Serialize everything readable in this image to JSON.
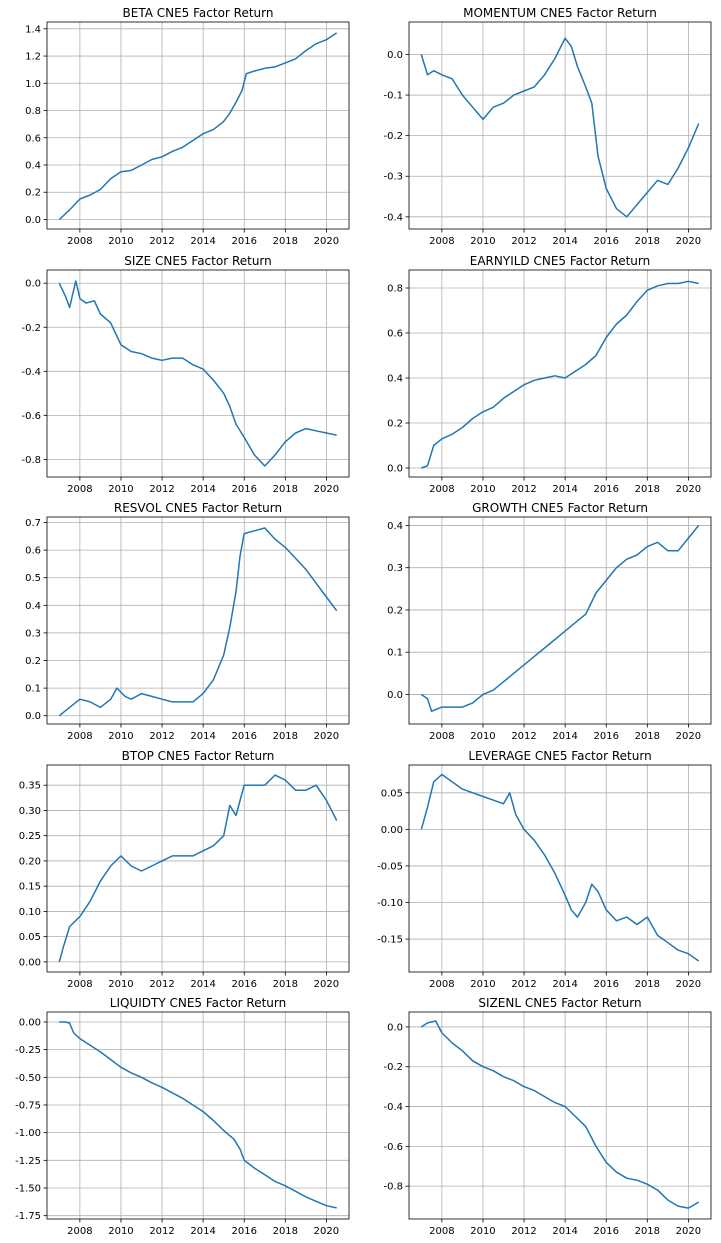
{
  "figure": {
    "background": "#ffffff"
  },
  "style": {
    "line_color": "#1f77b4",
    "grid_color": "#b0b0b0",
    "axis_color": "#000000"
  },
  "chart_data": [
    {
      "type": "line",
      "title": "BETA  CNE5 Factor Return",
      "grid": true,
      "xlim": [
        2006.4,
        2021.1
      ],
      "ylim": [
        -0.07,
        1.45
      ],
      "xticks": [
        2008,
        2010,
        2012,
        2014,
        2016,
        2018,
        2020
      ],
      "yticks": [
        0.0,
        0.2,
        0.4,
        0.6,
        0.8,
        1.0,
        1.2,
        1.4
      ],
      "ytick_decimals": 1,
      "x": [
        2007.0,
        2007.5,
        2008.0,
        2008.5,
        2009.0,
        2009.5,
        2010.0,
        2010.5,
        2011.0,
        2011.5,
        2012.0,
        2012.5,
        2013.0,
        2013.5,
        2014.0,
        2014.5,
        2015.0,
        2015.3,
        2015.6,
        2015.9,
        2016.1,
        2016.5,
        2017.0,
        2017.5,
        2018.0,
        2018.5,
        2019.0,
        2019.5,
        2020.0,
        2020.5
      ],
      "y": [
        0.0,
        0.07,
        0.15,
        0.18,
        0.22,
        0.3,
        0.35,
        0.36,
        0.4,
        0.44,
        0.46,
        0.5,
        0.53,
        0.58,
        0.63,
        0.66,
        0.72,
        0.78,
        0.86,
        0.95,
        1.07,
        1.09,
        1.11,
        1.12,
        1.15,
        1.18,
        1.24,
        1.29,
        1.32,
        1.37
      ]
    },
    {
      "type": "line",
      "title": "MOMENTUM  CNE5 Factor Return",
      "grid": true,
      "xlim": [
        2006.4,
        2021.1
      ],
      "ylim": [
        -0.43,
        0.08
      ],
      "xticks": [
        2008,
        2010,
        2012,
        2014,
        2016,
        2018,
        2020
      ],
      "yticks": [
        0.0,
        -0.1,
        -0.2,
        -0.3,
        -0.4
      ],
      "ytick_decimals": 1,
      "x": [
        2007.0,
        2007.3,
        2007.6,
        2008.0,
        2008.5,
        2009.0,
        2009.5,
        2010.0,
        2010.5,
        2011.0,
        2011.5,
        2012.0,
        2012.5,
        2013.0,
        2013.5,
        2014.0,
        2014.3,
        2014.6,
        2015.0,
        2015.3,
        2015.6,
        2016.0,
        2016.5,
        2017.0,
        2017.5,
        2018.0,
        2018.5,
        2019.0,
        2019.5,
        2020.0,
        2020.5
      ],
      "y": [
        0.0,
        -0.05,
        -0.04,
        -0.05,
        -0.06,
        -0.1,
        -0.13,
        -0.16,
        -0.13,
        -0.12,
        -0.1,
        -0.09,
        -0.08,
        -0.05,
        -0.01,
        0.04,
        0.02,
        -0.03,
        -0.08,
        -0.12,
        -0.25,
        -0.33,
        -0.38,
        -0.4,
        -0.37,
        -0.34,
        -0.31,
        -0.32,
        -0.28,
        -0.23,
        -0.17
      ]
    },
    {
      "type": "line",
      "title": "SIZE  CNE5 Factor Return",
      "grid": true,
      "xlim": [
        2006.4,
        2021.1
      ],
      "ylim": [
        -0.88,
        0.06
      ],
      "xticks": [
        2008,
        2010,
        2012,
        2014,
        2016,
        2018,
        2020
      ],
      "yticks": [
        0.0,
        -0.2,
        -0.4,
        -0.6,
        -0.8
      ],
      "ytick_decimals": 1,
      "x": [
        2007.0,
        2007.3,
        2007.5,
        2007.8,
        2008.0,
        2008.3,
        2008.7,
        2009.0,
        2009.5,
        2010.0,
        2010.5,
        2011.0,
        2011.5,
        2012.0,
        2012.5,
        2013.0,
        2013.5,
        2014.0,
        2014.5,
        2015.0,
        2015.3,
        2015.6,
        2016.0,
        2016.5,
        2017.0,
        2017.5,
        2018.0,
        2018.5,
        2019.0,
        2019.5,
        2020.0,
        2020.5
      ],
      "y": [
        0.0,
        -0.06,
        -0.11,
        0.01,
        -0.07,
        -0.09,
        -0.08,
        -0.14,
        -0.18,
        -0.28,
        -0.31,
        -0.32,
        -0.34,
        -0.35,
        -0.34,
        -0.34,
        -0.37,
        -0.39,
        -0.44,
        -0.5,
        -0.56,
        -0.64,
        -0.7,
        -0.78,
        -0.83,
        -0.78,
        -0.72,
        -0.68,
        -0.66,
        -0.67,
        -0.68,
        -0.69
      ]
    },
    {
      "type": "line",
      "title": "EARNYILD  CNE5 Factor Return",
      "grid": true,
      "xlim": [
        2006.4,
        2021.1
      ],
      "ylim": [
        -0.04,
        0.88
      ],
      "xticks": [
        2008,
        2010,
        2012,
        2014,
        2016,
        2018,
        2020
      ],
      "yticks": [
        0.0,
        0.2,
        0.4,
        0.6,
        0.8
      ],
      "ytick_decimals": 1,
      "x": [
        2007.0,
        2007.3,
        2007.6,
        2008.0,
        2008.5,
        2009.0,
        2009.5,
        2010.0,
        2010.5,
        2011.0,
        2011.5,
        2012.0,
        2012.5,
        2013.0,
        2013.5,
        2014.0,
        2014.5,
        2015.0,
        2015.5,
        2016.0,
        2016.5,
        2017.0,
        2017.5,
        2018.0,
        2018.5,
        2019.0,
        2019.5,
        2020.0,
        2020.5
      ],
      "y": [
        0.0,
        0.01,
        0.1,
        0.13,
        0.15,
        0.18,
        0.22,
        0.25,
        0.27,
        0.31,
        0.34,
        0.37,
        0.39,
        0.4,
        0.41,
        0.4,
        0.43,
        0.46,
        0.5,
        0.58,
        0.64,
        0.68,
        0.74,
        0.79,
        0.81,
        0.82,
        0.82,
        0.83,
        0.82
      ]
    },
    {
      "type": "line",
      "title": "RESVOL  CNE5 Factor Return",
      "grid": true,
      "xlim": [
        2006.4,
        2021.1
      ],
      "ylim": [
        -0.03,
        0.72
      ],
      "xticks": [
        2008,
        2010,
        2012,
        2014,
        2016,
        2018,
        2020
      ],
      "yticks": [
        0.0,
        0.1,
        0.2,
        0.3,
        0.4,
        0.5,
        0.6,
        0.7
      ],
      "ytick_decimals": 1,
      "x": [
        2007.0,
        2007.5,
        2008.0,
        2008.5,
        2009.0,
        2009.5,
        2009.8,
        2010.2,
        2010.5,
        2011.0,
        2011.5,
        2012.0,
        2012.5,
        2013.0,
        2013.5,
        2014.0,
        2014.5,
        2015.0,
        2015.3,
        2015.6,
        2015.8,
        2016.0,
        2016.5,
        2017.0,
        2017.5,
        2018.0,
        2018.5,
        2019.0,
        2019.5,
        2020.0,
        2020.5
      ],
      "y": [
        0.0,
        0.03,
        0.06,
        0.05,
        0.03,
        0.06,
        0.1,
        0.07,
        0.06,
        0.08,
        0.07,
        0.06,
        0.05,
        0.05,
        0.05,
        0.08,
        0.13,
        0.22,
        0.32,
        0.45,
        0.58,
        0.66,
        0.67,
        0.68,
        0.64,
        0.61,
        0.57,
        0.53,
        0.48,
        0.43,
        0.38
      ]
    },
    {
      "type": "line",
      "title": "GROWTH  CNE5 Factor Return",
      "grid": true,
      "xlim": [
        2006.4,
        2021.1
      ],
      "ylim": [
        -0.07,
        0.42
      ],
      "xticks": [
        2008,
        2010,
        2012,
        2014,
        2016,
        2018,
        2020
      ],
      "yticks": [
        0.0,
        0.1,
        0.2,
        0.3,
        0.4
      ],
      "ytick_decimals": 1,
      "x": [
        2007.0,
        2007.3,
        2007.5,
        2008.0,
        2008.5,
        2009.0,
        2009.5,
        2010.0,
        2010.5,
        2011.0,
        2011.5,
        2012.0,
        2012.5,
        2013.0,
        2013.5,
        2014.0,
        2014.5,
        2015.0,
        2015.5,
        2016.0,
        2016.5,
        2017.0,
        2017.5,
        2018.0,
        2018.5,
        2019.0,
        2019.5,
        2020.0,
        2020.5
      ],
      "y": [
        0.0,
        -0.01,
        -0.04,
        -0.03,
        -0.03,
        -0.03,
        -0.02,
        0.0,
        0.01,
        0.03,
        0.05,
        0.07,
        0.09,
        0.11,
        0.13,
        0.15,
        0.17,
        0.19,
        0.24,
        0.27,
        0.3,
        0.32,
        0.33,
        0.35,
        0.36,
        0.34,
        0.34,
        0.37,
        0.4
      ]
    },
    {
      "type": "line",
      "title": "BTOP  CNE5 Factor Return",
      "grid": true,
      "xlim": [
        2006.4,
        2021.1
      ],
      "ylim": [
        -0.02,
        0.39
      ],
      "xticks": [
        2008,
        2010,
        2012,
        2014,
        2016,
        2018,
        2020
      ],
      "yticks": [
        0.0,
        0.05,
        0.1,
        0.15,
        0.2,
        0.25,
        0.3,
        0.35
      ],
      "ytick_decimals": 2,
      "x": [
        2007.0,
        2007.2,
        2007.5,
        2008.0,
        2008.5,
        2009.0,
        2009.5,
        2010.0,
        2010.5,
        2011.0,
        2011.5,
        2012.0,
        2012.5,
        2013.0,
        2013.5,
        2014.0,
        2014.5,
        2015.0,
        2015.3,
        2015.6,
        2016.0,
        2016.5,
        2017.0,
        2017.5,
        2018.0,
        2018.5,
        2019.0,
        2019.5,
        2020.0,
        2020.5
      ],
      "y": [
        0.0,
        0.03,
        0.07,
        0.09,
        0.12,
        0.16,
        0.19,
        0.21,
        0.19,
        0.18,
        0.19,
        0.2,
        0.21,
        0.21,
        0.21,
        0.22,
        0.23,
        0.25,
        0.31,
        0.29,
        0.35,
        0.35,
        0.35,
        0.37,
        0.36,
        0.34,
        0.34,
        0.35,
        0.32,
        0.28
      ]
    },
    {
      "type": "line",
      "title": "LEVERAGE  CNE5 Factor Return",
      "grid": true,
      "xlim": [
        2006.4,
        2021.1
      ],
      "ylim": [
        -0.195,
        0.088
      ],
      "xticks": [
        2008,
        2010,
        2012,
        2014,
        2016,
        2018,
        2020
      ],
      "yticks": [
        0.05,
        0.0,
        -0.05,
        -0.1,
        -0.15
      ],
      "ytick_decimals": 2,
      "x": [
        2007.0,
        2007.3,
        2007.6,
        2008.0,
        2008.5,
        2009.0,
        2009.5,
        2010.0,
        2010.5,
        2011.0,
        2011.3,
        2011.6,
        2012.0,
        2012.5,
        2013.0,
        2013.5,
        2014.0,
        2014.3,
        2014.6,
        2015.0,
        2015.3,
        2015.6,
        2016.0,
        2016.5,
        2017.0,
        2017.5,
        2018.0,
        2018.5,
        2019.0,
        2019.5,
        2020.0,
        2020.5
      ],
      "y": [
        0.0,
        0.03,
        0.065,
        0.075,
        0.065,
        0.055,
        0.05,
        0.045,
        0.04,
        0.035,
        0.05,
        0.02,
        0.0,
        -0.015,
        -0.035,
        -0.06,
        -0.09,
        -0.11,
        -0.12,
        -0.1,
        -0.075,
        -0.085,
        -0.11,
        -0.125,
        -0.12,
        -0.13,
        -0.12,
        -0.145,
        -0.155,
        -0.165,
        -0.17,
        -0.18
      ]
    },
    {
      "type": "line",
      "title": "LIQUIDTY  CNE5 Factor Return",
      "grid": true,
      "xlim": [
        2006.4,
        2021.1
      ],
      "ylim": [
        -1.78,
        0.09
      ],
      "xticks": [
        2008,
        2010,
        2012,
        2014,
        2016,
        2018,
        2020
      ],
      "yticks": [
        0.0,
        -0.25,
        -0.5,
        -0.75,
        -1.0,
        -1.25,
        -1.5,
        -1.75
      ],
      "ytick_decimals": 2,
      "x": [
        2007.0,
        2007.3,
        2007.5,
        2007.7,
        2008.0,
        2008.5,
        2009.0,
        2009.5,
        2010.0,
        2010.5,
        2011.0,
        2011.5,
        2012.0,
        2012.5,
        2013.0,
        2013.5,
        2014.0,
        2014.5,
        2015.0,
        2015.5,
        2015.8,
        2016.0,
        2016.5,
        2017.0,
        2017.5,
        2018.0,
        2018.5,
        2019.0,
        2019.5,
        2020.0,
        2020.5
      ],
      "y": [
        0.0,
        0.0,
        -0.01,
        -0.1,
        -0.15,
        -0.21,
        -0.27,
        -0.34,
        -0.41,
        -0.46,
        -0.5,
        -0.55,
        -0.59,
        -0.64,
        -0.69,
        -0.75,
        -0.81,
        -0.89,
        -0.98,
        -1.06,
        -1.15,
        -1.25,
        -1.32,
        -1.38,
        -1.44,
        -1.48,
        -1.53,
        -1.58,
        -1.62,
        -1.66,
        -1.68
      ]
    },
    {
      "type": "line",
      "title": "SIZENL  CNE5 Factor Return",
      "grid": true,
      "xlim": [
        2006.4,
        2021.1
      ],
      "ylim": [
        -0.965,
        0.075
      ],
      "xticks": [
        2008,
        2010,
        2012,
        2014,
        2016,
        2018,
        2020
      ],
      "yticks": [
        0.0,
        -0.2,
        -0.4,
        -0.6,
        -0.8
      ],
      "ytick_decimals": 1,
      "x": [
        2007.0,
        2007.3,
        2007.7,
        2008.0,
        2008.5,
        2009.0,
        2009.5,
        2010.0,
        2010.5,
        2011.0,
        2011.5,
        2012.0,
        2012.5,
        2013.0,
        2013.5,
        2014.0,
        2014.5,
        2015.0,
        2015.5,
        2016.0,
        2016.5,
        2017.0,
        2017.5,
        2018.0,
        2018.5,
        2019.0,
        2019.5,
        2020.0,
        2020.5
      ],
      "y": [
        0.0,
        0.02,
        0.03,
        -0.03,
        -0.08,
        -0.12,
        -0.17,
        -0.2,
        -0.22,
        -0.25,
        -0.27,
        -0.3,
        -0.32,
        -0.35,
        -0.38,
        -0.4,
        -0.45,
        -0.5,
        -0.6,
        -0.68,
        -0.73,
        -0.76,
        -0.77,
        -0.79,
        -0.82,
        -0.87,
        -0.9,
        -0.91,
        -0.88
      ]
    }
  ]
}
